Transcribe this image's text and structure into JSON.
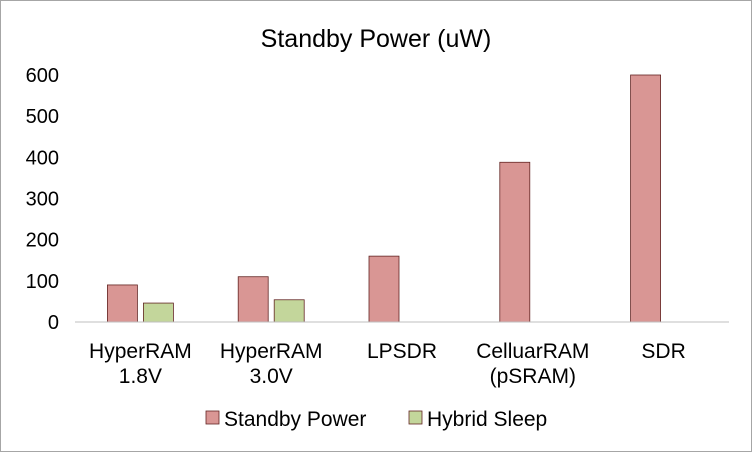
{
  "chart_data": {
    "type": "bar",
    "title": "Standby Power (uW)",
    "xlabel": "",
    "ylabel": "",
    "categories": [
      [
        "HyperRAM",
        "1.8V"
      ],
      [
        "HyperRAM",
        "3.0V"
      ],
      [
        "LPSDR"
      ],
      [
        "CelluarRAM",
        "(pSRAM)"
      ],
      [
        "SDR"
      ]
    ],
    "series": [
      {
        "name": "Standby Power",
        "color": "#d99694",
        "values": [
          90,
          110,
          160,
          388,
          600
        ]
      },
      {
        "name": "Hybrid Sleep",
        "color": "#c3d69b",
        "values": [
          46,
          54,
          null,
          null,
          null
        ]
      }
    ],
    "ylim": [
      0,
      600
    ],
    "yticks": [
      0,
      100,
      200,
      300,
      400,
      500,
      600
    ],
    "grid": false,
    "legend": "bottom",
    "bar_outline_color": "#632523"
  }
}
